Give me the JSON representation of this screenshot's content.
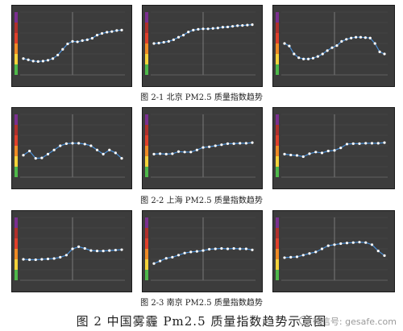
{
  "captions": [
    "图 2-1 北京 PM2.5 质量指数趋势",
    "图 2-2 上海 PM2.5 质量指数趋势",
    "图 2-3 南京 PM2.5 质量指数趋势"
  ],
  "footer": "图 2  中国雾霾 Pm2.5 质量指数趋势示意图",
  "watermark": "微信号: gesafe.com",
  "colors": {
    "panel_bg": "#3c3c3c",
    "grid": "#4e4e4e",
    "line": "#4a8fd6",
    "marker": "#ffffff",
    "scale": [
      "#7b2f8f",
      "#b0302c",
      "#e0402a",
      "#f08a24",
      "#f5d33a",
      "#4fb84a"
    ]
  },
  "chart_data": [
    {
      "type": "line",
      "ylim": [
        0,
        300
      ],
      "values": [
        78,
        72,
        66,
        64,
        66,
        70,
        78,
        95,
        122,
        148,
        160,
        158,
        164,
        168,
        175,
        190,
        198,
        204,
        207,
        212,
        214
      ]
    },
    {
      "type": "line",
      "ylim": [
        0,
        300
      ],
      "values": [
        150,
        152,
        156,
        160,
        168,
        180,
        190,
        205,
        214,
        218,
        220,
        220,
        222,
        224,
        228,
        229,
        232,
        235,
        236,
        238,
        240
      ]
    },
    {
      "type": "line",
      "ylim": [
        0,
        300
      ],
      "values": [
        150,
        138,
        100,
        82,
        76,
        76,
        80,
        88,
        100,
        116,
        130,
        140,
        160,
        170,
        176,
        180,
        180,
        178,
        176,
        150,
        110,
        100
      ]
    },
    {
      "type": "line",
      "ylim": [
        0,
        300
      ],
      "values": [
        105,
        125,
        90,
        92,
        110,
        130,
        150,
        160,
        162,
        162,
        158,
        150,
        130,
        110,
        130,
        116,
        90
      ]
    },
    {
      "type": "line",
      "ylim": [
        0,
        300
      ],
      "values": [
        110,
        112,
        110,
        112,
        122,
        120,
        120,
        130,
        142,
        145,
        150,
        155,
        160,
        160,
        162,
        162,
        165
      ]
    },
    {
      "type": "line",
      "ylim": [
        0,
        300
      ],
      "values": [
        110,
        106,
        104,
        98,
        112,
        120,
        116,
        125,
        128,
        140,
        158,
        160,
        160,
        162,
        162,
        162,
        165
      ]
    },
    {
      "type": "line",
      "ylim": [
        0,
        300
      ],
      "values": [
        100,
        98,
        98,
        100,
        102,
        104,
        110,
        120,
        150,
        160,
        152,
        142,
        140,
        140,
        142,
        144,
        146
      ]
    },
    {
      "type": "line",
      "ylim": [
        0,
        300
      ],
      "values": [
        80,
        92,
        105,
        110,
        120,
        130,
        135,
        138,
        142,
        148,
        150,
        152,
        150,
        152,
        150,
        150,
        145
      ]
    },
    {
      "type": "line",
      "ylim": [
        0,
        300
      ],
      "values": [
        108,
        110,
        112,
        120,
        128,
        135,
        150,
        165,
        170,
        175,
        178,
        180,
        182,
        180,
        170,
        140,
        118
      ]
    }
  ]
}
